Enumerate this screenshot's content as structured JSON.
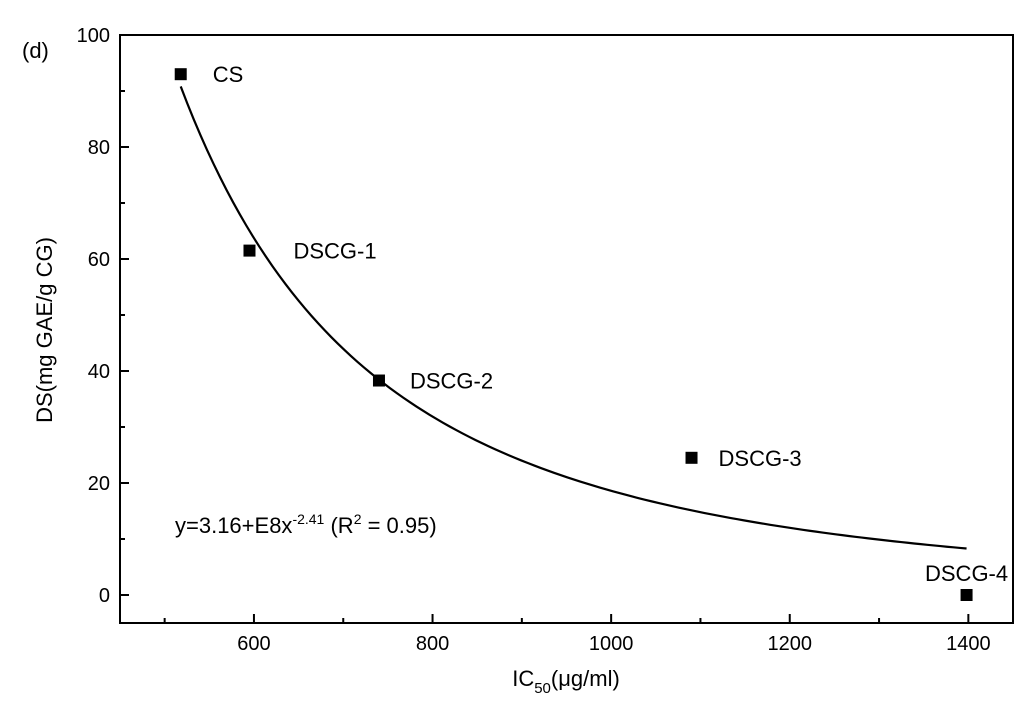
{
  "chart_data": {
    "type": "scatter",
    "panel_label": "(d)",
    "xlabel": {
      "main": "IC",
      "sub": "50",
      "rest": "(μg/ml)"
    },
    "ylabel": "DS(mg GAE/g CG)",
    "xlim": [
      450,
      1450
    ],
    "ylim": [
      -5,
      100
    ],
    "x_ticks": [
      600,
      800,
      1000,
      1200,
      1400
    ],
    "y_ticks": [
      0,
      20,
      40,
      60,
      80,
      100
    ],
    "points": [
      {
        "label": "CS",
        "x": 518,
        "y": 93
      },
      {
        "label": "DSCG-1",
        "x": 595,
        "y": 61.5
      },
      {
        "label": "DSCG-2",
        "x": 740,
        "y": 38.3
      },
      {
        "label": "DSCG-3",
        "x": 1090,
        "y": 24.5
      },
      {
        "label": "DSCG-4",
        "x": 1398,
        "y": 0
      }
    ],
    "fit": {
      "equation": {
        "pre": "y=3.16+E8x",
        "exp": "-2.41",
        "mid": " (R",
        "r2exp": "2",
        "post": " = 0.95)"
      },
      "coef": 316000000.0,
      "power": -2.41,
      "x_range": [
        518,
        1398
      ]
    }
  }
}
